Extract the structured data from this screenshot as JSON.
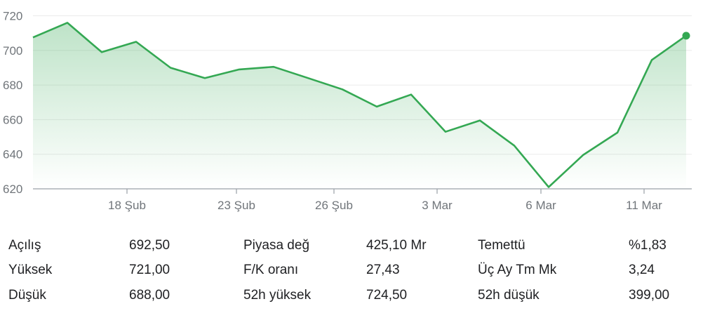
{
  "chart_data": {
    "type": "area",
    "title": "",
    "xlabel": "",
    "ylabel": "",
    "ylim": [
      620,
      720
    ],
    "yticks": [
      "720",
      "700",
      "680",
      "660",
      "640",
      "620"
    ],
    "xtick_labels": [
      "18 Şub",
      "23 Şub",
      "26 Şub",
      "3 Mar",
      "6 Mar",
      "11 Mar"
    ],
    "line_color": "#34a853",
    "grid": true,
    "series": [
      {
        "values": [
          707.5,
          716,
          699,
          705,
          690,
          684,
          689,
          690.5,
          684,
          677.5,
          667.5,
          674.5,
          653,
          659.5,
          645,
          621,
          639.5,
          652.5,
          694.5,
          708.5
        ]
      }
    ]
  },
  "stats": {
    "col1": [
      {
        "label": "Açılış",
        "value": "692,50"
      },
      {
        "label": "Yüksek",
        "value": "721,00"
      },
      {
        "label": "Düşük",
        "value": "688,00"
      }
    ],
    "col2": [
      {
        "label": "Piyasa değ",
        "value": "425,10 Mr"
      },
      {
        "label": "F/K oranı",
        "value": "27,43"
      },
      {
        "label": "52h yüksek",
        "value": "724,50"
      }
    ],
    "col3": [
      {
        "label": "Temettü",
        "value": "%1,83"
      },
      {
        "label": "Üç Ay Tm Mk",
        "value": "3,24"
      },
      {
        "label": "52h düşük",
        "value": "399,00"
      }
    ]
  }
}
